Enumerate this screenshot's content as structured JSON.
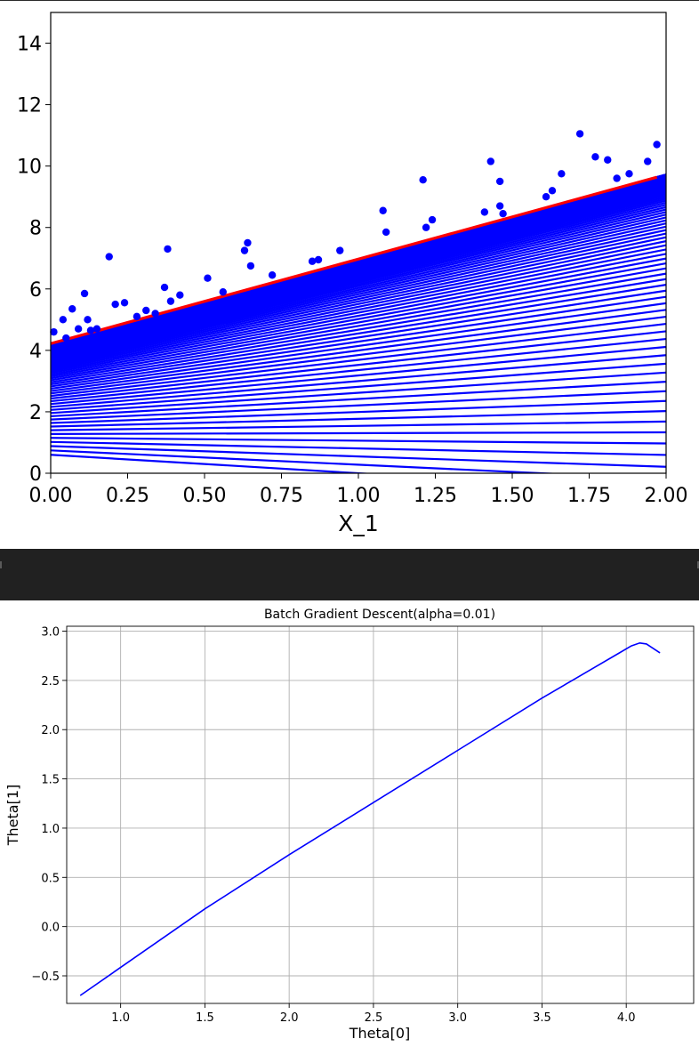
{
  "chart_data": [
    {
      "type": "scatter",
      "title": "",
      "xlabel": "X_1",
      "ylabel": "",
      "xlim": [
        0,
        2
      ],
      "ylim": [
        0,
        15
      ],
      "x_ticks": [
        "0.00",
        "0.25",
        "0.50",
        "0.75",
        "1.00",
        "1.25",
        "1.50",
        "1.75",
        "2.00"
      ],
      "y_ticks": [
        "0",
        "2",
        "4",
        "6",
        "8",
        "10",
        "12",
        "14"
      ],
      "grid": false,
      "colors": {
        "points": "#0000ff",
        "lines": "#0000ff",
        "final_line": "#ff0000"
      },
      "points": {
        "x": [
          0.01,
          0.04,
          0.05,
          0.07,
          0.09,
          0.11,
          0.12,
          0.13,
          0.15,
          0.19,
          0.21,
          0.24,
          0.28,
          0.31,
          0.34,
          0.37,
          0.38,
          0.39,
          0.42,
          0.51,
          0.56,
          0.63,
          0.64,
          0.65,
          0.72,
          0.85,
          0.87,
          0.94,
          1.08,
          1.09,
          1.21,
          1.22,
          1.24,
          1.41,
          1.43,
          1.46,
          1.46,
          1.47,
          1.61,
          1.63,
          1.66,
          1.72,
          1.77,
          1.81,
          1.84,
          1.88,
          1.94,
          1.97
        ],
        "y": [
          4.6,
          5.0,
          4.4,
          5.35,
          4.7,
          5.85,
          5.0,
          4.65,
          4.7,
          7.05,
          5.5,
          5.55,
          5.1,
          5.3,
          5.2,
          6.05,
          7.3,
          5.6,
          5.8,
          6.35,
          5.9,
          7.25,
          7.5,
          6.75,
          6.45,
          6.9,
          6.95,
          7.25,
          8.55,
          7.85,
          9.55,
          8.0,
          8.25,
          8.5,
          10.15,
          9.5,
          8.7,
          8.45,
          9.0,
          9.2,
          9.75,
          11.05,
          10.3,
          10.2,
          9.6,
          9.75,
          10.15,
          10.7
        ]
      },
      "line_fits": {
        "theta0_start": 0.6,
        "theta0_end": 4.22,
        "theta1_start": -0.6,
        "theta1_end": 2.75,
        "count": 100
      }
    },
    {
      "type": "line",
      "title": "Batch Gradient Descent(alpha=0.01)",
      "xlabel": "Theta[0]",
      "ylabel": "Theta[1]",
      "xlim": [
        0.68,
        4.4
      ],
      "ylim": [
        -0.78,
        3.05
      ],
      "x_ticks": [
        "1.0",
        "1.5",
        "2.0",
        "2.5",
        "3.0",
        "3.5",
        "4.0"
      ],
      "y_ticks": [
        "−0.5",
        "0.0",
        "0.5",
        "1.0",
        "1.5",
        "2.0",
        "2.5",
        "3.0"
      ],
      "grid": true,
      "color": "#0000ff",
      "series": [
        {
          "x": [
            0.76,
            1.5,
            2.0,
            2.5,
            3.0,
            3.5,
            3.8,
            3.95,
            4.03,
            4.08,
            4.12,
            4.2
          ],
          "y": [
            -0.7,
            0.18,
            0.73,
            1.26,
            1.79,
            2.32,
            2.62,
            2.77,
            2.85,
            2.88,
            2.87,
            2.78
          ]
        }
      ]
    }
  ]
}
